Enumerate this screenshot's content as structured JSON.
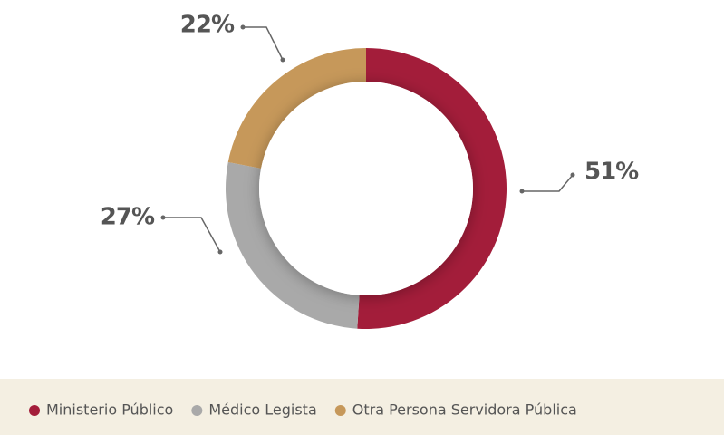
{
  "chart_data": {
    "type": "donut",
    "categories": [
      "Ministerio Público",
      "Médico Legista",
      "Otra Persona Servidora Pública"
    ],
    "values": [
      51,
      27,
      22
    ],
    "value_labels": [
      "51%",
      "27%",
      "22%"
    ],
    "colors": [
      "#a31d3a",
      "#a9a9a9",
      "#c6985a"
    ]
  }
}
